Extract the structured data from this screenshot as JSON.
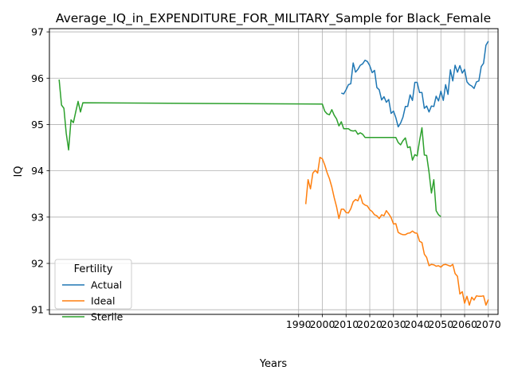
{
  "chart_data": {
    "type": "line",
    "title": "Average_IQ_in_EXPENDITURE_FOR_MILITARY_Sample for Black_Female",
    "xlabel": "Years",
    "ylabel": "IQ",
    "xlim": [
      1884.9,
      2074.1
    ],
    "ylim": [
      90.9,
      97.07
    ],
    "xticks": [
      1990,
      2000,
      2010,
      2020,
      2030,
      2040,
      2050,
      2060,
      2070
    ],
    "yticks": [
      91,
      92,
      93,
      94,
      95,
      96,
      97
    ],
    "grid": true,
    "legend": {
      "title": "Fertility",
      "placement": "lower-left"
    },
    "series": [
      {
        "name": "Actual",
        "color": "#1f77b4",
        "x": [
          2008,
          2009,
          2010,
          2011,
          2012,
          2013,
          2014,
          2015,
          2016,
          2017,
          2018,
          2019,
          2020,
          2021,
          2022,
          2023,
          2024,
          2025,
          2026,
          2027,
          2028,
          2029,
          2030,
          2031,
          2032,
          2033,
          2034,
          2035,
          2036,
          2037,
          2038,
          2039,
          2040,
          2041,
          2042,
          2043,
          2044,
          2045,
          2046,
          2047,
          2048,
          2049,
          2050,
          2051,
          2052,
          2053,
          2054,
          2055,
          2056,
          2057,
          2058,
          2059,
          2060,
          2061,
          2062,
          2063,
          2064,
          2065,
          2066,
          2067,
          2068,
          2069,
          2070
        ],
        "y": [
          95.68,
          95.66,
          95.75,
          95.86,
          95.88,
          96.33,
          96.13,
          96.19,
          96.28,
          96.31,
          96.39,
          96.36,
          96.27,
          96.12,
          96.17,
          95.8,
          95.75,
          95.53,
          95.6,
          95.48,
          95.54,
          95.24,
          95.29,
          95.15,
          94.95,
          95.03,
          95.16,
          95.39,
          95.39,
          95.64,
          95.52,
          95.91,
          95.91,
          95.69,
          95.69,
          95.35,
          95.4,
          95.27,
          95.4,
          95.39,
          95.61,
          95.51,
          95.72,
          95.52,
          95.86,
          95.65,
          96.18,
          95.94,
          96.28,
          96.13,
          96.27,
          96.11,
          96.19,
          95.92,
          95.86,
          95.83,
          95.78,
          95.92,
          95.94,
          96.25,
          96.32,
          96.71,
          96.8
        ]
      },
      {
        "name": "Ideal",
        "color": "#ff7f0e",
        "x": [
          1993,
          1994,
          1995,
          1996,
          1997,
          1998,
          1999,
          2000,
          2001,
          2002,
          2003,
          2004,
          2005,
          2006,
          2007,
          2008,
          2009,
          2010,
          2011,
          2012,
          2013,
          2014,
          2015,
          2016,
          2017,
          2018,
          2019,
          2020,
          2021,
          2022,
          2023,
          2024,
          2025,
          2026,
          2027,
          2028,
          2029,
          2030,
          2031,
          2032,
          2033,
          2034,
          2035,
          2036,
          2037,
          2038,
          2039,
          2040,
          2041,
          2042,
          2043,
          2044,
          2045,
          2046,
          2047,
          2048,
          2049,
          2050,
          2051,
          2052,
          2053,
          2054,
          2055,
          2056,
          2057,
          2058,
          2059,
          2060,
          2061,
          2062,
          2063,
          2064,
          2065,
          2066,
          2067,
          2068,
          2069,
          2070
        ],
        "y": [
          93.28,
          93.81,
          93.61,
          93.95,
          94.01,
          93.95,
          94.29,
          94.26,
          94.13,
          93.96,
          93.83,
          93.65,
          93.42,
          93.22,
          92.97,
          93.17,
          93.17,
          93.1,
          93.09,
          93.18,
          93.33,
          93.38,
          93.35,
          93.48,
          93.3,
          93.26,
          93.24,
          93.16,
          93.12,
          93.05,
          93.03,
          92.97,
          93.05,
          93.03,
          93.14,
          93.07,
          92.99,
          92.85,
          92.86,
          92.67,
          92.64,
          92.62,
          92.62,
          92.65,
          92.66,
          92.7,
          92.66,
          92.65,
          92.48,
          92.45,
          92.2,
          92.13,
          91.95,
          91.98,
          91.97,
          91.94,
          91.95,
          91.92,
          91.97,
          91.98,
          91.96,
          91.94,
          91.98,
          91.78,
          91.72,
          91.34,
          91.39,
          91.14,
          91.29,
          91.1,
          91.27,
          91.21,
          91.3,
          91.29,
          91.29,
          91.3,
          91.1,
          91.22
        ]
      },
      {
        "name": "Sterile",
        "color": "#2ca02c",
        "x": [
          1889,
          1890,
          1891,
          1892,
          1893,
          1894,
          1895,
          1896,
          1897,
          1898,
          1899,
          2000,
          2001,
          2002,
          2003,
          2004,
          2005,
          2006,
          2007,
          2008,
          2009,
          2010,
          2011,
          2012,
          2013,
          2014,
          2015,
          2016,
          2017,
          2018,
          2019,
          2020,
          2021,
          2022,
          2023,
          2024,
          2025,
          2026,
          2027,
          2028,
          2029,
          2030,
          2031,
          2032,
          2033,
          2034,
          2035,
          2036,
          2037,
          2038,
          2039,
          2040,
          2041,
          2042,
          2043,
          2044,
          2045,
          2046,
          2047,
          2048,
          2049,
          2050
        ],
        "y": [
          95.97,
          95.42,
          95.35,
          94.81,
          94.45,
          95.1,
          95.04,
          95.27,
          95.5,
          95.27,
          95.47,
          95.44,
          95.29,
          95.23,
          95.21,
          95.32,
          95.2,
          95.12,
          94.97,
          95.06,
          94.91,
          94.91,
          94.91,
          94.87,
          94.86,
          94.87,
          94.79,
          94.82,
          94.79,
          94.72,
          94.72,
          94.72,
          94.72,
          94.72,
          94.72,
          94.72,
          94.72,
          94.72,
          94.72,
          94.72,
          94.72,
          94.72,
          94.72,
          94.61,
          94.56,
          94.65,
          94.71,
          94.5,
          94.52,
          94.23,
          94.35,
          94.32,
          94.65,
          94.93,
          94.34,
          94.33,
          93.97,
          93.52,
          93.81,
          93.14,
          93.05,
          93.01
        ]
      }
    ]
  }
}
